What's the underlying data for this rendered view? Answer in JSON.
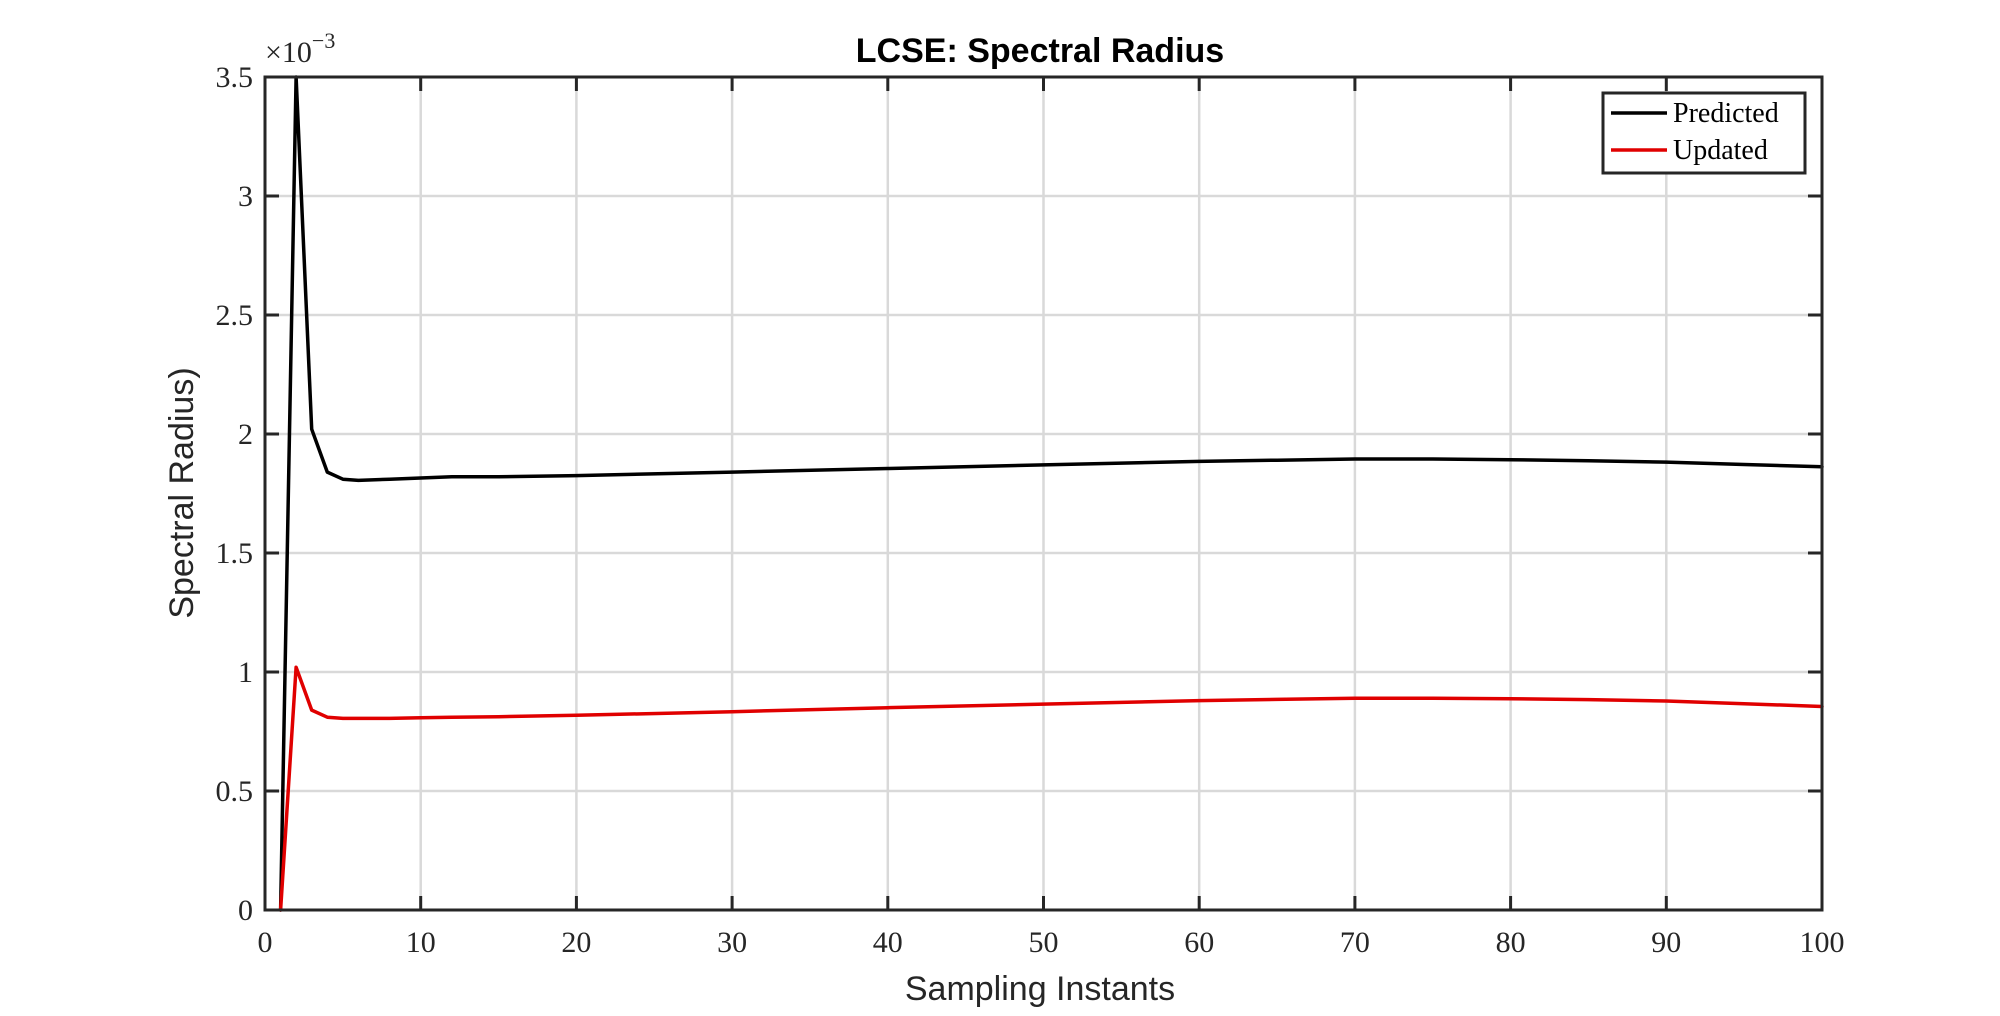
{
  "chart_data": {
    "type": "line",
    "title": "LCSE: Spectral Radius",
    "xlabel": "Sampling Instants",
    "ylabel": "Spectral Radius)",
    "y_multiplier": {
      "base": "×10",
      "exponent": "−3"
    },
    "xlim": [
      0,
      100
    ],
    "ylim": [
      0,
      3.5
    ],
    "xticks": [
      0,
      10,
      20,
      30,
      40,
      50,
      60,
      70,
      80,
      90,
      100
    ],
    "yticks": [
      0,
      0.5,
      1,
      1.5,
      2,
      2.5,
      3,
      3.5
    ],
    "ytick_labels": [
      "0",
      "0.5",
      "1",
      "1.5",
      "2",
      "2.5",
      "3",
      "3.5"
    ],
    "grid": true,
    "legend_position": "top-right",
    "series": [
      {
        "name": "Predicted",
        "color": "#000000",
        "x": [
          1,
          2,
          3,
          4,
          5,
          6,
          8,
          10,
          12,
          15,
          20,
          30,
          40,
          50,
          60,
          65,
          70,
          75,
          80,
          85,
          90,
          95,
          100
        ],
        "y": [
          0,
          3.5,
          2.02,
          1.84,
          1.81,
          1.805,
          1.81,
          1.815,
          1.82,
          1.82,
          1.825,
          1.84,
          1.855,
          1.87,
          1.885,
          1.89,
          1.895,
          1.895,
          1.892,
          1.888,
          1.882,
          1.872,
          1.862
        ]
      },
      {
        "name": "Updated",
        "color": "#e00000",
        "x": [
          1,
          2,
          3,
          4,
          5,
          6,
          8,
          10,
          12,
          15,
          20,
          30,
          40,
          50,
          60,
          65,
          70,
          75,
          80,
          85,
          90,
          95,
          100
        ],
        "y": [
          0,
          1.02,
          0.84,
          0.81,
          0.805,
          0.805,
          0.805,
          0.808,
          0.81,
          0.812,
          0.818,
          0.833,
          0.85,
          0.865,
          0.88,
          0.885,
          0.89,
          0.89,
          0.888,
          0.884,
          0.878,
          0.867,
          0.855
        ]
      }
    ]
  }
}
